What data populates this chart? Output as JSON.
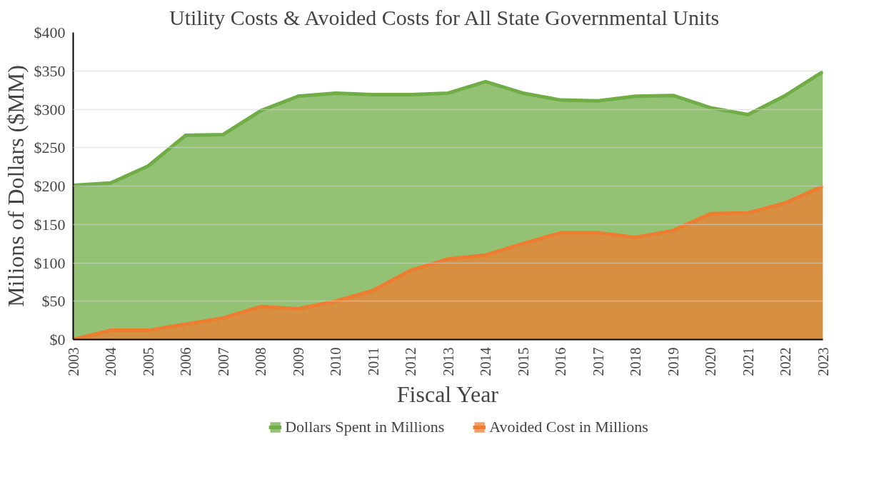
{
  "chart_data": {
    "type": "area",
    "title": "Utility  Costs & Avoided Costs for All State Governmental Units",
    "xlabel": "Fiscal Year",
    "ylabel": "Milions of Dollars ($MM)",
    "categories": [
      "2003",
      "2004",
      "2005",
      "2006",
      "2007",
      "2008",
      "2009",
      "2010",
      "2011",
      "2012",
      "2013",
      "2014",
      "2015",
      "2016",
      "2017",
      "2018",
      "2019",
      "2020",
      "2021",
      "2022",
      "2023"
    ],
    "series": [
      {
        "name": "Dollars Spent in Millions",
        "color": "#70ad47",
        "values": [
          201,
          204,
          226,
          266,
          267,
          298,
          317,
          321,
          319,
          319,
          321,
          336,
          321,
          312,
          311,
          317,
          318,
          302,
          293,
          318,
          349
        ]
      },
      {
        "name": "Avoided Cost in Millions",
        "color": "#ed7d31",
        "values": [
          0,
          12,
          12,
          20,
          28,
          43,
          40,
          50,
          64,
          90,
          105,
          110,
          125,
          139,
          139,
          133,
          142,
          164,
          165,
          178,
          200
        ]
      }
    ],
    "ylim": [
      0,
      400
    ],
    "yticks": [
      {
        "value": 0,
        "label": "$0"
      },
      {
        "value": 50,
        "label": "$50"
      },
      {
        "value": 100,
        "label": "$100"
      },
      {
        "value": 150,
        "label": "$150"
      },
      {
        "value": 200,
        "label": "$200"
      },
      {
        "value": 250,
        "label": "$250"
      },
      {
        "value": 300,
        "label": "$300"
      },
      {
        "value": 350,
        "label": "$350"
      },
      {
        "value": 400,
        "label": "$400"
      }
    ],
    "grid": "y",
    "legend": "bottom"
  }
}
